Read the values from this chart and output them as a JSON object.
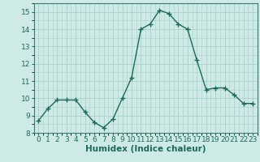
{
  "x": [
    0,
    1,
    2,
    3,
    4,
    5,
    6,
    7,
    8,
    9,
    10,
    11,
    12,
    13,
    14,
    15,
    16,
    17,
    18,
    19,
    20,
    21,
    22,
    23
  ],
  "y": [
    8.7,
    9.4,
    9.9,
    9.9,
    9.9,
    9.2,
    8.6,
    8.3,
    8.8,
    10.0,
    11.2,
    14.0,
    14.3,
    15.1,
    14.9,
    14.3,
    14.0,
    12.2,
    10.5,
    10.6,
    10.6,
    10.2,
    9.7,
    9.7
  ],
  "line_color": "#1a6b5a",
  "marker": "+",
  "marker_size": 4,
  "marker_lw": 1.0,
  "bg_color": "#ceeae7",
  "grid_color": "#aacfcc",
  "xlabel": "Humidex (Indice chaleur)",
  "ylim": [
    8,
    15.5
  ],
  "xlim": [
    -0.5,
    23.5
  ],
  "yticks": [
    8,
    9,
    10,
    11,
    12,
    13,
    14,
    15
  ],
  "xticks": [
    0,
    1,
    2,
    3,
    4,
    5,
    6,
    7,
    8,
    9,
    10,
    11,
    12,
    13,
    14,
    15,
    16,
    17,
    18,
    19,
    20,
    21,
    22,
    23
  ],
  "xlabel_fontsize": 7.5,
  "tick_fontsize": 6.5,
  "line_width": 1.0,
  "spine_color": "#3a7a70"
}
